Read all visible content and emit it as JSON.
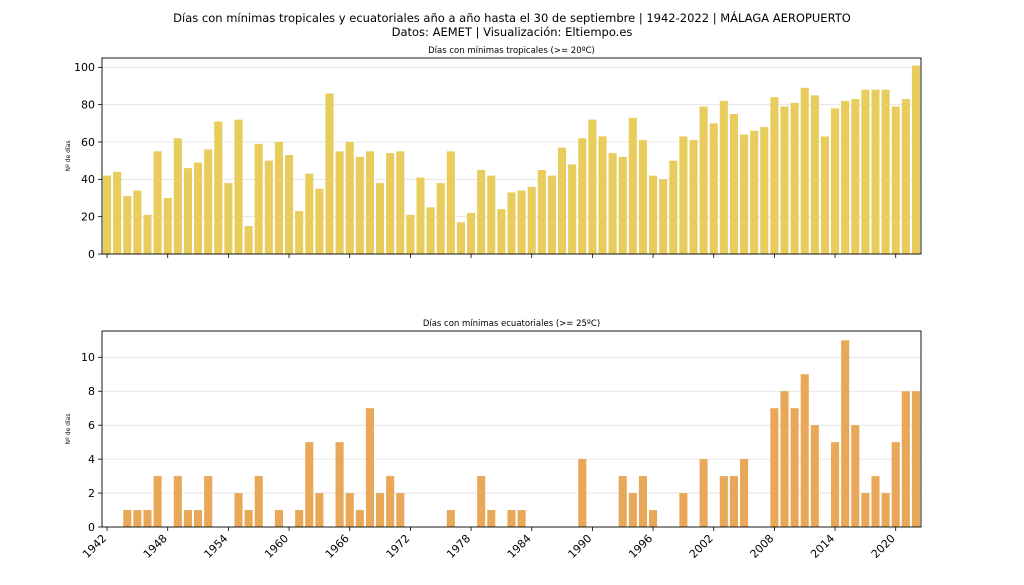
{
  "header": {
    "title": "Días con mínimas tropicales y ecuatoriales año a año hasta el 30 de septiembre | 1942-2022 | MÁLAGA AEROPUERTO",
    "subtitle": "Datos: AEMET | Visualización: Eltiempo.es"
  },
  "colors": {
    "tropical": "#E8CC5C",
    "ecuatorial": "#E8A858",
    "grid": "#e0e0e0"
  },
  "chart_data": [
    {
      "type": "bar",
      "title": "Días con mínimas tropicales (>= 20ºC)",
      "ylabel": "Nº de días",
      "xlabel": "",
      "ylim": [
        0,
        105
      ],
      "yticks": [
        0,
        20,
        40,
        60,
        80,
        100
      ],
      "x": [
        1942,
        1943,
        1944,
        1945,
        1946,
        1947,
        1948,
        1949,
        1950,
        1951,
        1952,
        1953,
        1954,
        1955,
        1956,
        1957,
        1958,
        1959,
        1960,
        1961,
        1962,
        1963,
        1964,
        1965,
        1966,
        1967,
        1968,
        1969,
        1970,
        1971,
        1972,
        1973,
        1974,
        1975,
        1976,
        1977,
        1978,
        1979,
        1980,
        1981,
        1982,
        1983,
        1984,
        1985,
        1986,
        1987,
        1988,
        1989,
        1990,
        1991,
        1992,
        1993,
        1994,
        1995,
        1996,
        1997,
        1998,
        1999,
        2000,
        2001,
        2002,
        2003,
        2004,
        2005,
        2006,
        2007,
        2008,
        2009,
        2010,
        2011,
        2012,
        2013,
        2014,
        2015,
        2016,
        2017,
        2018,
        2019,
        2020,
        2021,
        2022
      ],
      "values": [
        42,
        44,
        31,
        34,
        21,
        55,
        30,
        62,
        46,
        49,
        56,
        71,
        38,
        72,
        15,
        59,
        50,
        60,
        53,
        23,
        43,
        35,
        86,
        55,
        60,
        52,
        55,
        38,
        54,
        55,
        21,
        41,
        25,
        38,
        55,
        17,
        22,
        45,
        42,
        24,
        33,
        34,
        36,
        45,
        42,
        57,
        48,
        62,
        72,
        63,
        54,
        52,
        73,
        61,
        42,
        40,
        50,
        63,
        61,
        79,
        70,
        82,
        75,
        64,
        66,
        68,
        84,
        79,
        81,
        89,
        85,
        63,
        78,
        82,
        83,
        88,
        88,
        88,
        79,
        83,
        101
      ]
    },
    {
      "type": "bar",
      "title": "Días con mínimas ecuatoriales (>= 25ºC)",
      "ylabel": "Nº de días",
      "xlabel": "",
      "ylim": [
        0,
        11.55
      ],
      "yticks": [
        0,
        2,
        4,
        6,
        8,
        10
      ],
      "xticks": [
        "1942",
        "1948",
        "1954",
        "1960",
        "1966",
        "1972",
        "1978",
        "1984",
        "1990",
        "1996",
        "2002",
        "2008",
        "2014",
        "2020"
      ],
      "x": [
        1942,
        1943,
        1944,
        1945,
        1946,
        1947,
        1948,
        1949,
        1950,
        1951,
        1952,
        1953,
        1954,
        1955,
        1956,
        1957,
        1958,
        1959,
        1960,
        1961,
        1962,
        1963,
        1964,
        1965,
        1966,
        1967,
        1968,
        1969,
        1970,
        1971,
        1972,
        1973,
        1974,
        1975,
        1976,
        1977,
        1978,
        1979,
        1980,
        1981,
        1982,
        1983,
        1984,
        1985,
        1986,
        1987,
        1988,
        1989,
        1990,
        1991,
        1992,
        1993,
        1994,
        1995,
        1996,
        1997,
        1998,
        1999,
        2000,
        2001,
        2002,
        2003,
        2004,
        2005,
        2006,
        2007,
        2008,
        2009,
        2010,
        2011,
        2012,
        2013,
        2014,
        2015,
        2016,
        2017,
        2018,
        2019,
        2020,
        2021,
        2022
      ],
      "values": [
        0,
        0,
        1,
        1,
        1,
        3,
        0,
        3,
        1,
        1,
        3,
        0,
        0,
        2,
        1,
        3,
        0,
        1,
        0,
        1,
        5,
        2,
        0,
        5,
        2,
        1,
        7,
        2,
        3,
        2,
        0,
        0,
        0,
        0,
        1,
        0,
        0,
        3,
        1,
        0,
        1,
        1,
        0,
        0,
        0,
        0,
        0,
        4,
        0,
        0,
        0,
        3,
        2,
        3,
        1,
        0,
        0,
        2,
        0,
        4,
        0,
        3,
        3,
        4,
        0,
        0,
        7,
        8,
        7,
        9,
        6,
        0,
        5,
        11,
        6,
        2,
        3,
        2,
        5,
        8,
        8
      ]
    }
  ]
}
